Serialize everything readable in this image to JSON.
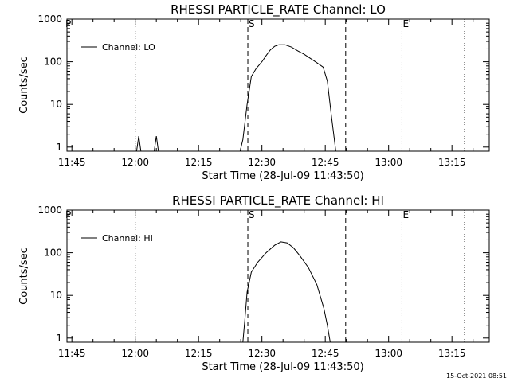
{
  "footer": {
    "timestamp": "15-Oct-2021 08:51"
  },
  "chart_data": [
    {
      "type": "line",
      "title": "RHESSI PARTICLE_RATE Channel: LO",
      "xlabel": "Start Time (28-Jul-09 11:43:50)",
      "ylabel": "Counts/sec",
      "yscale": "log",
      "ylim": [
        0.8,
        1000
      ],
      "xlim": [
        "11:43:50",
        "13:23:50"
      ],
      "xticks": [
        "11:45",
        "12:00",
        "12:15",
        "12:30",
        "12:45",
        "13:00",
        "13:15"
      ],
      "yticks": [
        "1",
        "10",
        "100",
        "1000"
      ],
      "legend": {
        "label": "Channel: LO",
        "placement": "top-left"
      },
      "series": [
        {
          "color": "#000000",
          "x": [
            "12:00:20",
            "12:00:50",
            "12:01:20",
            "12:04:30",
            "12:05:00",
            "12:05:30",
            "12:24:50",
            "12:25:30",
            "12:26:30",
            "12:27:30",
            "12:28:40",
            "12:30:00",
            "12:31:00",
            "12:32:00",
            "12:33:00",
            "12:34:00",
            "12:35:30",
            "12:37:00",
            "12:38:30",
            "12:40:00",
            "12:41:30",
            "12:43:00",
            "12:44:30",
            "12:45:30",
            "12:46:30",
            "12:47:30"
          ],
          "y": [
            0.8,
            1.8,
            0.8,
            0.8,
            1.8,
            0.8,
            0.8,
            1.5,
            10,
            45,
            70,
            100,
            140,
            190,
            230,
            250,
            250,
            220,
            180,
            150,
            120,
            95,
            75,
            35,
            5,
            0.8
          ]
        }
      ],
      "markers": [
        {
          "type": "dotted",
          "x": "12:00:00"
        },
        {
          "type": "dashed",
          "x": "12:26:40",
          "label": "S"
        },
        {
          "type": "dashed",
          "x": "12:49:50"
        },
        {
          "type": "dotted",
          "x": "13:03:10",
          "label": "E"
        },
        {
          "type": "dotted",
          "x": "13:18:00"
        }
      ],
      "corner_label": "P"
    },
    {
      "type": "line",
      "title": "RHESSI PARTICLE_RATE Channel: HI",
      "xlabel": "Start Time (28-Jul-09 11:43:50)",
      "ylabel": "Counts/sec",
      "yscale": "log",
      "ylim": [
        0.8,
        1000
      ],
      "xlim": [
        "11:43:50",
        "13:23:50"
      ],
      "xticks": [
        "11:45",
        "12:00",
        "12:15",
        "12:30",
        "12:45",
        "13:00",
        "13:15"
      ],
      "yticks": [
        "1",
        "10",
        "100",
        "1000"
      ],
      "legend": {
        "label": "Channel: HI",
        "placement": "top-left"
      },
      "series": [
        {
          "color": "#000000",
          "x": [
            "12:25:30",
            "12:26:00",
            "12:26:30",
            "12:27:30",
            "12:29:00",
            "12:31:00",
            "12:33:00",
            "12:34:30",
            "12:36:00",
            "12:37:30",
            "12:39:00",
            "12:41:00",
            "12:43:00",
            "12:44:40",
            "12:45:30",
            "12:46:10"
          ],
          "y": [
            0.8,
            3,
            12,
            35,
            60,
            100,
            150,
            180,
            170,
            130,
            85,
            45,
            18,
            5,
            2,
            0.8
          ]
        }
      ],
      "markers": [
        {
          "type": "dotted",
          "x": "12:00:00"
        },
        {
          "type": "dashed",
          "x": "12:26:40",
          "label": "S"
        },
        {
          "type": "dashed",
          "x": "12:49:50"
        },
        {
          "type": "dotted",
          "x": "13:03:10",
          "label": "E"
        },
        {
          "type": "dotted",
          "x": "13:18:00"
        }
      ],
      "corner_label": "P"
    }
  ]
}
